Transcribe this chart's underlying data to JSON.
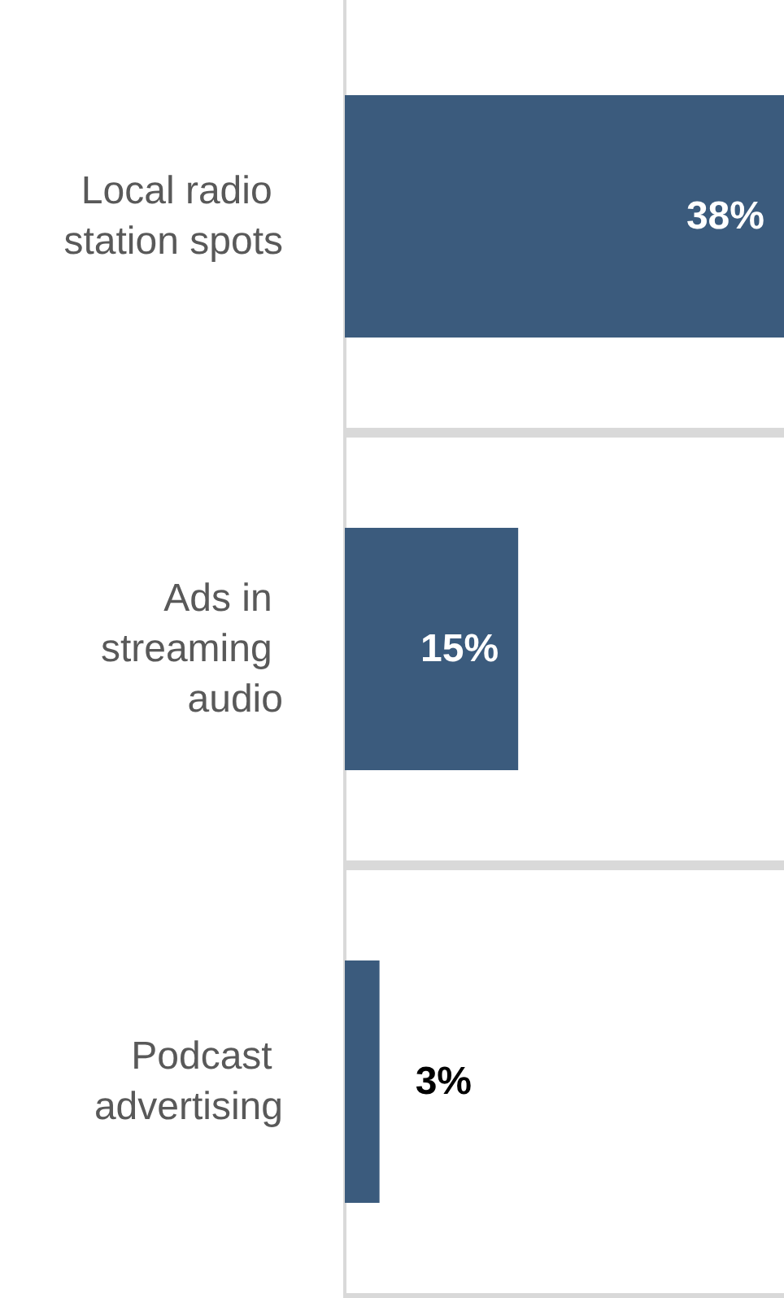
{
  "chart_data": {
    "type": "bar",
    "orientation": "horizontal",
    "categories": [
      "Local radio station spots",
      "Ads in streaming audio",
      "Podcast advertising"
    ],
    "values": [
      38,
      15,
      3
    ],
    "color": "#3b5b7d",
    "value_labels": [
      "38%",
      "15%",
      "3%"
    ],
    "xlim": [
      0,
      38
    ],
    "tick_labels": "y",
    "grid": "y"
  }
}
